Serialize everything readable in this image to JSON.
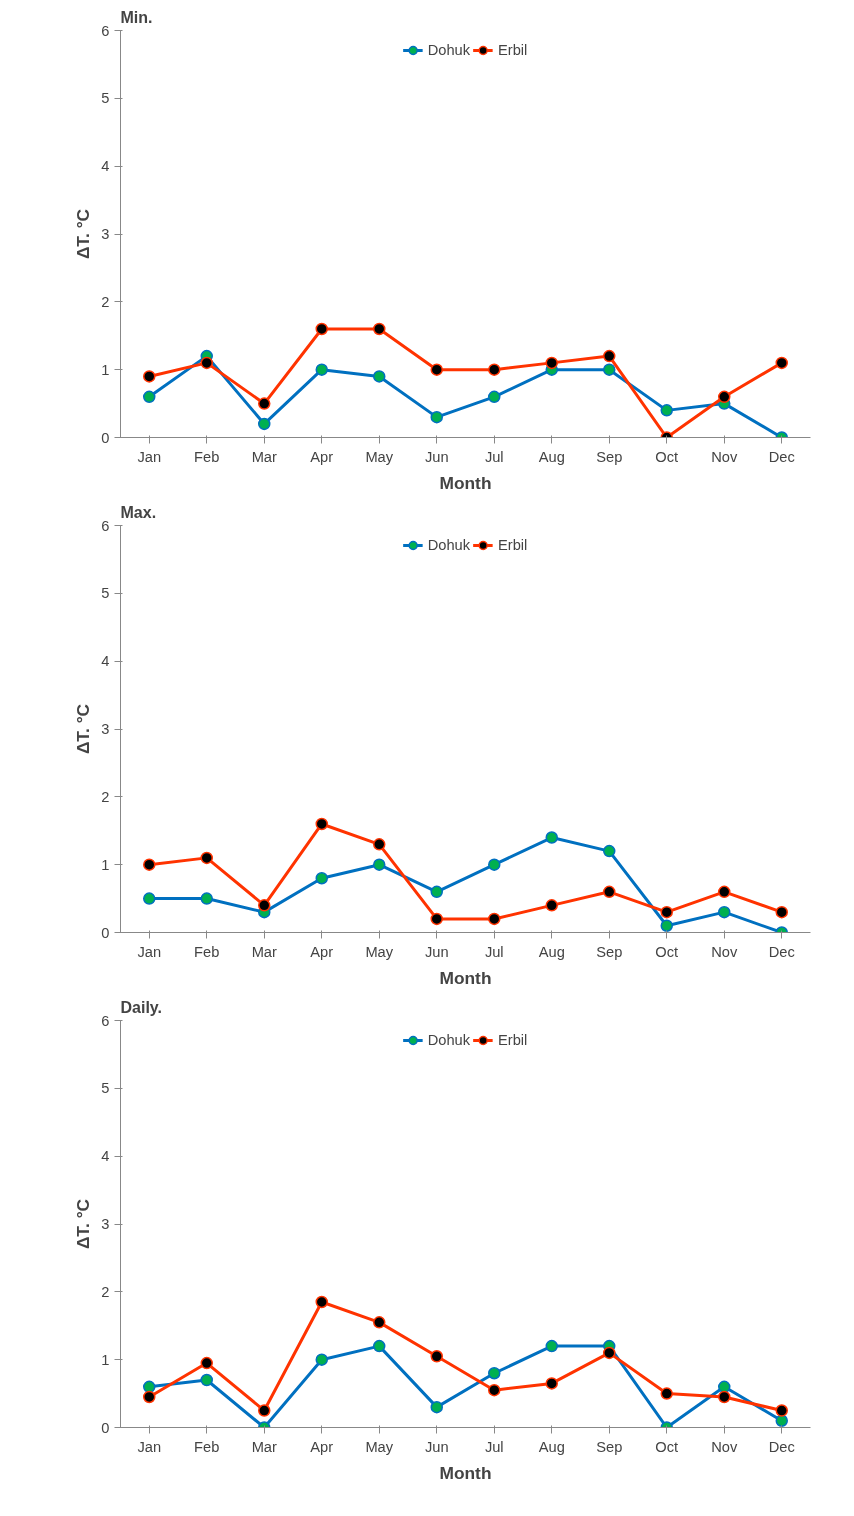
{
  "chart_data": [
    {
      "type": "line",
      "title": "Min.",
      "xlabel": "Month",
      "ylabel": "ΔT. °C",
      "categories": [
        "Jan",
        "Feb",
        "Mar",
        "Apr",
        "May",
        "Jun",
        "Jul",
        "Aug",
        "Sep",
        "Oct",
        "Nov",
        "Dec"
      ],
      "ylim": [
        0,
        6
      ],
      "yticks": [
        0,
        1,
        2,
        3,
        4,
        5,
        6
      ],
      "grid": false,
      "legend": "top",
      "marker": "circle",
      "series": [
        {
          "name": "Dohuk",
          "color": "#0070c0",
          "values": [
            0.6,
            1.2,
            0.2,
            1.0,
            0.9,
            0.3,
            0.6,
            1.0,
            1.0,
            0.4,
            0.5,
            0.0
          ]
        },
        {
          "name": "Erbil",
          "color": "#ff3300",
          "values": [
            0.9,
            1.1,
            0.5,
            1.6,
            1.6,
            1.0,
            1.0,
            1.1,
            1.2,
            0.0,
            0.6,
            1.1
          ]
        }
      ]
    },
    {
      "type": "line",
      "title": "Max.",
      "xlabel": "Month",
      "ylabel": "ΔT. °C",
      "categories": [
        "Jan",
        "Feb",
        "Mar",
        "Apr",
        "May",
        "Jun",
        "Jul",
        "Aug",
        "Sep",
        "Oct",
        "Nov",
        "Dec"
      ],
      "ylim": [
        0,
        6
      ],
      "yticks": [
        0,
        1,
        2,
        3,
        4,
        5,
        6
      ],
      "grid": false,
      "legend": "top",
      "marker": "circle",
      "series": [
        {
          "name": "Dohuk",
          "color": "#0070c0",
          "values": [
            0.5,
            0.5,
            0.3,
            0.8,
            1.0,
            0.6,
            1.0,
            1.4,
            1.2,
            0.1,
            0.3,
            0.0
          ]
        },
        {
          "name": "Erbil",
          "color": "#ff3300",
          "values": [
            1.0,
            1.1,
            0.4,
            1.6,
            1.3,
            0.2,
            0.2,
            0.4,
            0.6,
            0.3,
            0.6,
            0.3
          ]
        }
      ]
    },
    {
      "type": "line",
      "title": "Daily.",
      "xlabel": "Month",
      "ylabel": "ΔT. °C",
      "categories": [
        "Jan",
        "Feb",
        "Mar",
        "Apr",
        "May",
        "Jun",
        "Jul",
        "Aug",
        "Sep",
        "Oct",
        "Nov",
        "Dec"
      ],
      "ylim": [
        0,
        6
      ],
      "yticks": [
        0,
        1,
        2,
        3,
        4,
        5,
        6
      ],
      "grid": false,
      "legend": "top",
      "marker": "circle",
      "series": [
        {
          "name": "Dohuk",
          "color": "#0070c0",
          "values": [
            0.6,
            0.7,
            0.0,
            1.0,
            1.2,
            0.3,
            0.8,
            1.2,
            1.2,
            0.0,
            0.6,
            0.1
          ]
        },
        {
          "name": "Erbil",
          "color": "#ff3300",
          "values": [
            0.45,
            0.95,
            0.25,
            1.85,
            1.55,
            1.05,
            0.55,
            0.65,
            1.1,
            0.5,
            0.45,
            0.25
          ]
        }
      ]
    }
  ]
}
